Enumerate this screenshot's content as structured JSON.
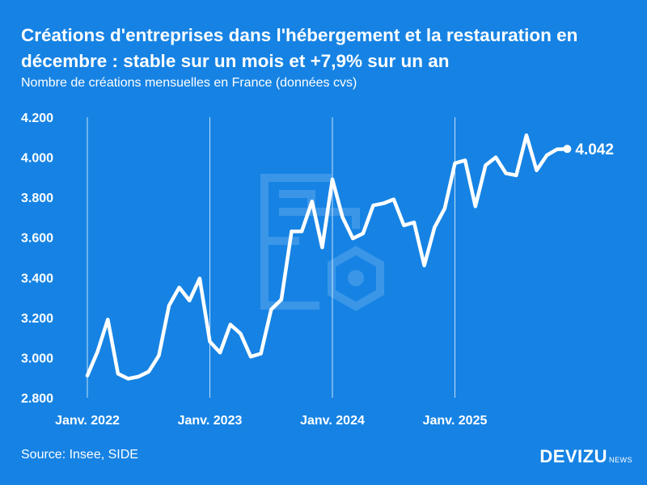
{
  "title": "Créations d'entreprises dans l'hébergement et la restauration en décembre : stable sur un mois et +7,9% sur un an",
  "subtitle": "Nombre de créations mensuelles en France (données cvs)",
  "source": "Source: Insee, SIDE",
  "brand": {
    "name": "DEVIZU",
    "suffix": "NEWS"
  },
  "colors": {
    "background": "#1683e4",
    "line": "#ffffff",
    "grid": "#ffffff",
    "watermark": "#5aa6ec"
  },
  "chart_data": {
    "type": "line",
    "title": "Créations d'entreprises dans l'hébergement et la restauration en décembre : stable sur un mois et +7,9% sur un an",
    "ylim": [
      2800,
      4200
    ],
    "yticks": [
      {
        "value": 2800,
        "label": "2.800"
      },
      {
        "value": 3000,
        "label": "3.000"
      },
      {
        "value": 3200,
        "label": "3.200"
      },
      {
        "value": 3400,
        "label": "3.400"
      },
      {
        "value": 3600,
        "label": "3.600"
      },
      {
        "value": 3800,
        "label": "3.800"
      },
      {
        "value": 4000,
        "label": "4.000"
      },
      {
        "value": 4200,
        "label": "4.200"
      }
    ],
    "xticks": [
      {
        "date": "2022-01",
        "label": "Janv. 2022"
      },
      {
        "date": "2023-01",
        "label": "Janv. 2023"
      },
      {
        "date": "2024-01",
        "label": "Janv. 2024"
      },
      {
        "date": "2025-01",
        "label": "Janv. 2025"
      }
    ],
    "grid": "vertical lines at january ticks",
    "x": [
      "2022-01",
      "2022-02",
      "2022-03",
      "2022-04",
      "2022-05",
      "2022-06",
      "2022-07",
      "2022-08",
      "2022-09",
      "2022-10",
      "2022-11",
      "2022-12",
      "2023-01",
      "2023-02",
      "2023-03",
      "2023-04",
      "2023-05",
      "2023-06",
      "2023-07",
      "2023-08",
      "2023-09",
      "2023-10",
      "2023-11",
      "2023-12",
      "2024-01",
      "2024-02",
      "2024-03",
      "2024-04",
      "2024-05",
      "2024-06",
      "2024-07",
      "2024-08",
      "2024-09",
      "2024-10",
      "2024-11",
      "2024-12",
      "2025-01",
      "2025-02",
      "2025-03",
      "2025-04",
      "2025-05",
      "2025-06",
      "2025-07",
      "2025-08",
      "2025-09",
      "2025-10",
      "2025-11",
      "2025-12"
    ],
    "values": [
      2910,
      3030,
      3190,
      2920,
      2895,
      2905,
      2930,
      3010,
      3260,
      3350,
      3285,
      3395,
      3080,
      3025,
      3165,
      3120,
      3005,
      3020,
      3240,
      3290,
      3630,
      3630,
      3780,
      3550,
      3890,
      3700,
      3595,
      3620,
      3760,
      3770,
      3790,
      3660,
      3675,
      3460,
      3650,
      3745,
      3970,
      3985,
      3755,
      3960,
      4000,
      3920,
      3910,
      4110,
      3935,
      4010,
      4040,
      4042
    ],
    "last_label": "4.042"
  }
}
